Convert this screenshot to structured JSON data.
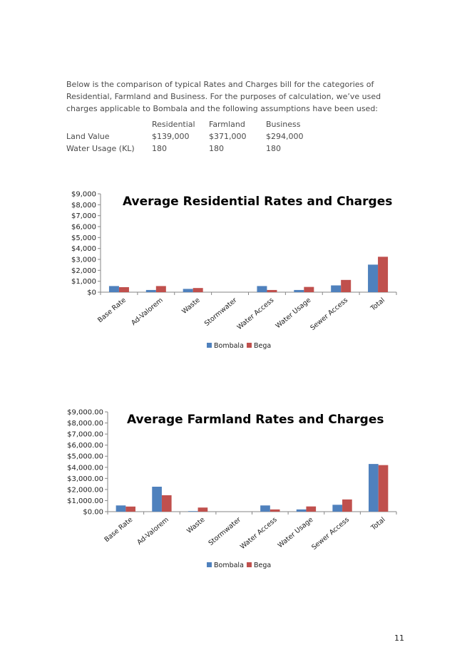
{
  "intro_text": "Below is the comparison of typical Rates and Charges bill for the categories of Residential, Farmland and Business. For the purposes of calculation, we’ve used charges applicable to Bombala and the following assumptions have been used:",
  "assumptions": {
    "headers": [
      "",
      "Residential",
      "Farmland",
      "Business"
    ],
    "rows": [
      [
        "Land Value",
        "$139,000",
        "$371,000",
        "$294,000"
      ],
      [
        "Water Usage (KL)",
        "180",
        "180",
        "180"
      ]
    ]
  },
  "colors": {
    "bombala": "#4f81bd",
    "bega": "#c0504d"
  },
  "chart_data": [
    {
      "type": "bar",
      "title": "Average Residential Rates and Charges",
      "categories": [
        "Base Rate",
        "Ad-Valorem",
        "Waste",
        "Stormwater",
        "Water Access",
        "Water Usage",
        "Sewer Access",
        "Total"
      ],
      "series": [
        {
          "name": "Bombala",
          "values": [
            560,
            200,
            300,
            0,
            560,
            200,
            620,
            2520
          ]
        },
        {
          "name": "Bega",
          "values": [
            460,
            560,
            380,
            0,
            200,
            480,
            1120,
            3240
          ]
        }
      ],
      "ylim": [
        0,
        9000
      ],
      "yticks": [
        0,
        1000,
        2000,
        3000,
        4000,
        5000,
        6000,
        7000,
        8000,
        9000
      ],
      "ytick_labels": [
        "$0",
        "$1,000",
        "$2,000",
        "$3,000",
        "$4,000",
        "$5,000",
        "$6,000",
        "$7,000",
        "$8,000",
        "$9,000"
      ],
      "legend": "bottom",
      "grid": false
    },
    {
      "type": "bar",
      "title": "Average Farmland Rates and Charges",
      "categories": [
        "Base Rate",
        "Ad-Valorem",
        "Waste",
        "Stormwater",
        "Water Access",
        "Water Usage",
        "Sewer Access",
        "Total"
      ],
      "series": [
        {
          "name": "Bombala",
          "values": [
            560,
            2250,
            50,
            0,
            560,
            200,
            620,
            4300
          ]
        },
        {
          "name": "Bega",
          "values": [
            460,
            1480,
            370,
            0,
            200,
            470,
            1100,
            4200
          ]
        }
      ],
      "ylim": [
        0,
        9000
      ],
      "yticks": [
        0,
        1000,
        2000,
        3000,
        4000,
        5000,
        6000,
        7000,
        8000,
        9000
      ],
      "ytick_labels": [
        "$0.00",
        "$1,000.00",
        "$2,000.00",
        "$3,000.00",
        "$4,000.00",
        "$5,000.00",
        "$6,000.00",
        "$7,000.00",
        "$8,000.00",
        "$9,000.00"
      ],
      "legend": "bottom",
      "grid": false
    }
  ],
  "page_number": "11"
}
